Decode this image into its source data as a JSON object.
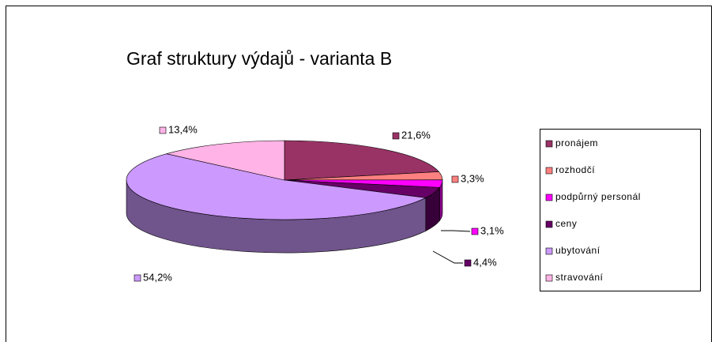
{
  "chart_data": {
    "type": "pie3d",
    "title": "Graf struktury výdajů - varianta B",
    "categories": [
      "pronájem",
      "rozhodčí",
      "podpůrný personál",
      "ceny",
      "ubytování",
      "stravování"
    ],
    "values": [
      21.6,
      3.3,
      3.1,
      4.4,
      54.2,
      13.4
    ],
    "value_labels": [
      "21,6%",
      "3,3%",
      "3,1%",
      "4,4%",
      "54,2%",
      "13,4%"
    ],
    "colors": [
      "#993366",
      "#FF8080",
      "#FF00FF",
      "#660066",
      "#CC99FF",
      "#FFB3E6"
    ],
    "legend": "right"
  }
}
